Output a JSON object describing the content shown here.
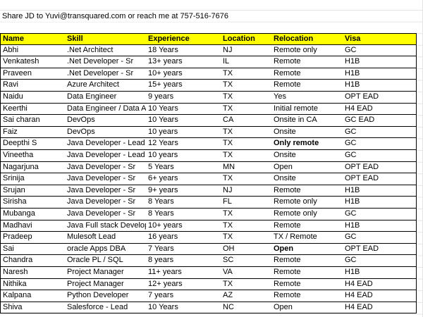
{
  "note": "Share JD to Yuvi@transquared.com or reach me at 757-516-7676",
  "table": {
    "header": [
      "Name",
      "Skill",
      "Experience",
      "Location",
      "Relocation",
      "Visa"
    ],
    "rows": [
      [
        "Abhi",
        ".Net Architect",
        "18 Years",
        "NJ",
        "Remote only",
        "GC"
      ],
      [
        "Venkatesh",
        ".Net Developer - Sr",
        "13+ years",
        "IL",
        "Remote",
        "H1B"
      ],
      [
        "Praveen",
        ".Net Developer - Sr",
        "10+ years",
        "TX",
        "Remote",
        "H1B"
      ],
      [
        "Ravi",
        "Azure Architect",
        "15+ years",
        "TX",
        "Remote",
        "H1B"
      ],
      [
        "Naidu",
        "Data Engineer",
        "9 years",
        "TX",
        "Yes",
        "OPT EAD"
      ],
      [
        "Keerthi",
        "Data Engineer / Data A",
        "10 Years",
        "TX",
        "Initial remote",
        "H4 EAD"
      ],
      [
        "Sai charan",
        "DevOps",
        "10 Years",
        "CA",
        "Onsite in CA",
        "GC EAD"
      ],
      [
        "Faiz",
        "DevOps",
        "10 years",
        "TX",
        "Onsite",
        "GC"
      ],
      [
        "Deepthi S",
        "Java Developer - Lead",
        "12 Years",
        "TX",
        "Only remote",
        "GC"
      ],
      [
        "Vineetha",
        "Java Developer - Lead",
        "10 years",
        "TX",
        "Onsite",
        "GC"
      ],
      [
        "Nagarjuna",
        "Java Developer - Sr",
        "5 Years",
        "MN",
        "Open",
        "OPT EAD"
      ],
      [
        "Srinija",
        "Java Developer - Sr",
        "6+ years",
        "TX",
        "Onsite",
        "OPT EAD"
      ],
      [
        "Srujan",
        "Java Developer - Sr",
        "9+ years",
        "NJ",
        "Remote",
        "H1B"
      ],
      [
        "Sirisha",
        "Java Developer - Sr",
        "8 Years",
        "FL",
        "Remote only",
        "H1B"
      ],
      [
        "Mubanga",
        "Java Developer - Sr",
        "8 Years",
        "TX",
        "Remote only",
        "GC"
      ],
      [
        "Madhavi",
        "Java Full stack Develop",
        "10+ years",
        "TX",
        "Remote",
        "H1B"
      ],
      [
        "Pradeep",
        "Mulesoft Lead",
        "16 years",
        "TX",
        "TX / Remote",
        "GC"
      ],
      [
        "Sai",
        "oracle Apps DBA",
        "7 Years",
        "OH",
        "Open",
        "OPT EAD"
      ],
      [
        "Chandra",
        "Oracle PL / SQL",
        "8 years",
        "SC",
        "Remote",
        "GC"
      ],
      [
        "Naresh",
        "Project Manager",
        "11+ years",
        "VA",
        "Remote",
        "H1B"
      ],
      [
        "Nithika",
        "Project Manager",
        "12+ years",
        "TX",
        "Remote",
        "H4 EAD"
      ],
      [
        "Kalpana",
        "Python Developer",
        "7 years",
        "AZ",
        "Remote",
        "H4 EAD"
      ],
      [
        "Shiva",
        "Salesforce - Lead",
        "10 Years",
        "NC",
        "Open",
        "H4 EAD"
      ]
    ]
  }
}
